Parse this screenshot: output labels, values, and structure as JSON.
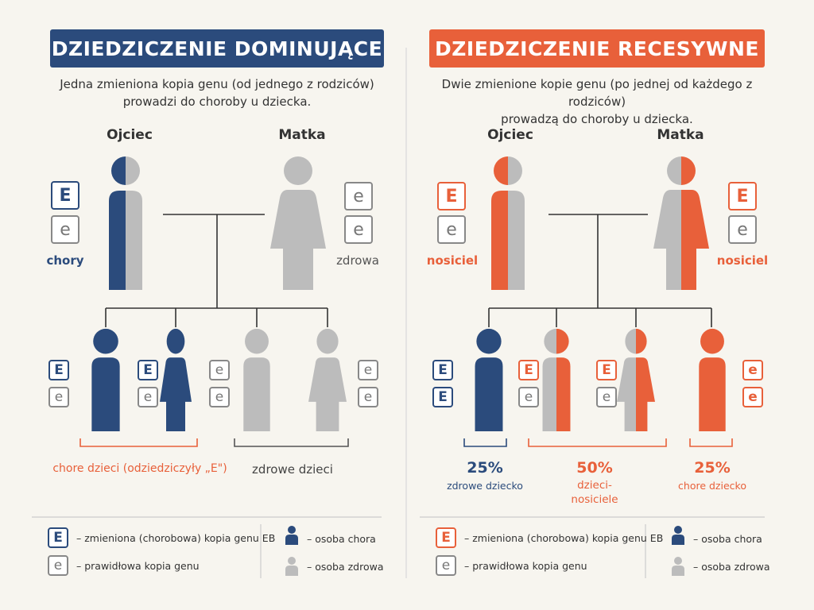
{
  "colors": {
    "blue": "#2b4b7c",
    "orange": "#e8603a",
    "gray": "#bcbcbc",
    "background": "#f7f5ef"
  },
  "left": {
    "title": "DZIEDZICZENIE DOMINUJĄCE",
    "desc_line1": "Jedna zmieniona kopia genu (od jednego z rodziców)",
    "desc_line2": "prowadzi do choroby u dziecka.",
    "father_label": "Ojciec",
    "mother_label": "Matka",
    "father_genes": [
      "E",
      "e"
    ],
    "mother_genes": [
      "e",
      "e"
    ],
    "father_status": "chory",
    "mother_status": "zdrowa",
    "children_genes": [
      [
        "E",
        "e"
      ],
      [
        "E",
        "e"
      ],
      [
        "e",
        "e"
      ],
      [
        "e",
        "e"
      ]
    ],
    "sick_children_label": "chore dzieci (odziedziczyły „E\")",
    "healthy_children_label": "zdrowe dzieci",
    "legend": {
      "mutated_letter": "E",
      "mutated_text": "– zmieniona (chorobowa) kopia genu EB",
      "normal_letter": "e",
      "normal_text": "– prawidłowa kopia genu",
      "sick_person_text": "– osoba chora",
      "healthy_person_text": "– osoba zdrowa"
    }
  },
  "right": {
    "title": "DZIEDZICZENIE RECESYWNE",
    "desc_line1": "Dwie zmienione kopie genu (po jednej od każdego z rodziców)",
    "desc_line2": "prowadzą do choroby u dziecka.",
    "father_label": "Ojciec",
    "mother_label": "Matka",
    "father_genes": [
      "E",
      "e"
    ],
    "mother_genes": [
      "E",
      "e"
    ],
    "father_status": "nosiciel",
    "mother_status": "nosiciel",
    "children_genes": [
      [
        "E",
        "E"
      ],
      [
        "E",
        "e"
      ],
      [
        "E",
        "e"
      ],
      [
        "e",
        "e"
      ]
    ],
    "outcomes": [
      {
        "percent": "25%",
        "label_line1": "zdrowe dziecko",
        "label_line2": ""
      },
      {
        "percent": "50%",
        "label_line1": "dzieci-",
        "label_line2": "nosiciele"
      },
      {
        "percent": "25%",
        "label_line1": "chore dziecko",
        "label_line2": ""
      }
    ],
    "legend": {
      "mutated_letter": "E",
      "mutated_text": "– zmieniona (chorobowa) kopia genu EB",
      "normal_letter": "e",
      "normal_text": "– prawidłowa kopia genu",
      "sick_person_text": "– osoba chora",
      "healthy_person_text": "– osoba zdrowa"
    }
  }
}
